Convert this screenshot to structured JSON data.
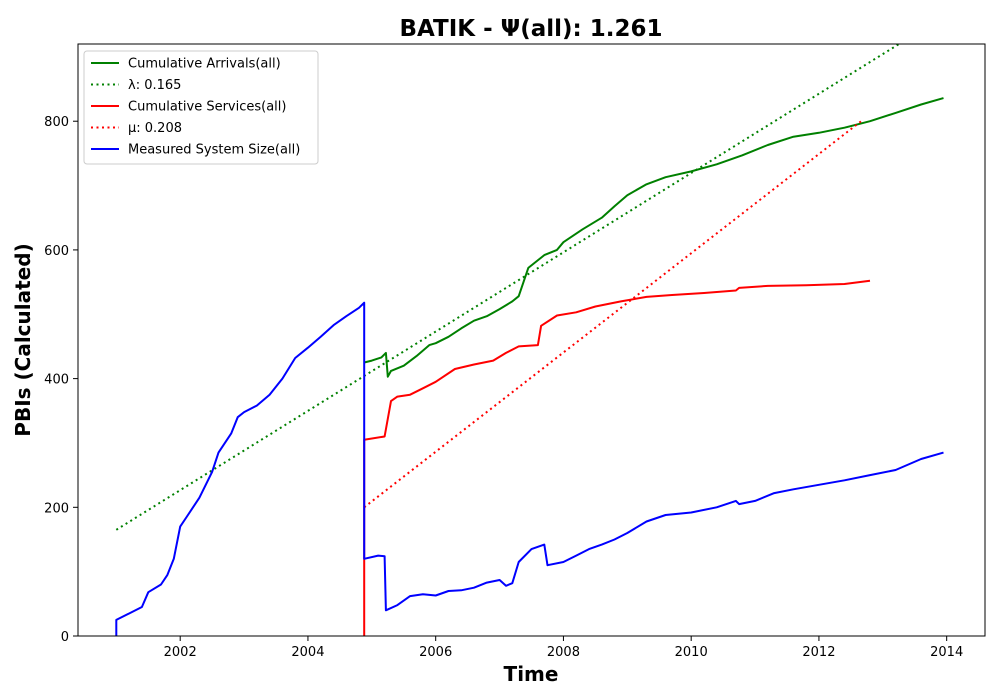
{
  "chart_data": {
    "type": "line",
    "title": "BATIK -  Ψ(all): 1.261",
    "xlabel": "Time",
    "ylabel": "PBIs (Calculated)",
    "xlim": [
      2000.4,
      2014.6
    ],
    "ylim": [
      0,
      920
    ],
    "x_ticks": [
      "2002",
      "2004",
      "2006",
      "2008",
      "2010",
      "2012",
      "2014"
    ],
    "y_ticks": [
      "0",
      "200",
      "400",
      "600",
      "800"
    ],
    "legend_position": "top-left",
    "series": [
      {
        "name": "Cumulative Arrivals(all)",
        "color": "#008000",
        "style": "solid",
        "points": [
          [
            2004.88,
            425
          ],
          [
            2005.0,
            428
          ],
          [
            2005.15,
            433
          ],
          [
            2005.22,
            440
          ],
          [
            2005.25,
            403
          ],
          [
            2005.3,
            412
          ],
          [
            2005.5,
            420
          ],
          [
            2005.7,
            435
          ],
          [
            2005.9,
            452
          ],
          [
            2006.0,
            455
          ],
          [
            2006.2,
            465
          ],
          [
            2006.4,
            478
          ],
          [
            2006.6,
            490
          ],
          [
            2006.8,
            497
          ],
          [
            2007.0,
            508
          ],
          [
            2007.2,
            520
          ],
          [
            2007.3,
            528
          ],
          [
            2007.45,
            572
          ],
          [
            2007.7,
            592
          ],
          [
            2007.9,
            600
          ],
          [
            2008.0,
            612
          ],
          [
            2008.3,
            632
          ],
          [
            2008.6,
            650
          ],
          [
            2008.8,
            668
          ],
          [
            2009.0,
            685
          ],
          [
            2009.3,
            702
          ],
          [
            2009.6,
            713
          ],
          [
            2010.0,
            722
          ],
          [
            2010.4,
            733
          ],
          [
            2010.8,
            747
          ],
          [
            2011.2,
            763
          ],
          [
            2011.6,
            776
          ],
          [
            2012.0,
            782
          ],
          [
            2012.4,
            790
          ],
          [
            2012.8,
            800
          ],
          [
            2013.2,
            813
          ],
          [
            2013.6,
            826
          ],
          [
            2013.95,
            836
          ]
        ]
      },
      {
        "name": "λ: 0.165",
        "color": "#008000",
        "style": "dotted",
        "points": [
          [
            2001.0,
            165
          ],
          [
            2013.5,
            935
          ]
        ]
      },
      {
        "name": "Cumulative Services(all)",
        "color": "#ff0000",
        "style": "solid",
        "points": [
          [
            2004.88,
            0
          ],
          [
            2004.88,
            305
          ],
          [
            2005.2,
            310
          ],
          [
            2005.3,
            365
          ],
          [
            2005.4,
            372
          ],
          [
            2005.6,
            375
          ],
          [
            2005.8,
            385
          ],
          [
            2006.0,
            395
          ],
          [
            2006.3,
            415
          ],
          [
            2006.6,
            422
          ],
          [
            2006.9,
            428
          ],
          [
            2007.1,
            440
          ],
          [
            2007.3,
            450
          ],
          [
            2007.6,
            452
          ],
          [
            2007.65,
            482
          ],
          [
            2007.9,
            498
          ],
          [
            2008.2,
            503
          ],
          [
            2008.5,
            512
          ],
          [
            2008.9,
            520
          ],
          [
            2009.3,
            527
          ],
          [
            2009.7,
            530
          ],
          [
            2010.2,
            533
          ],
          [
            2010.7,
            537
          ],
          [
            2010.75,
            541
          ],
          [
            2011.2,
            544
          ],
          [
            2011.8,
            545
          ],
          [
            2012.4,
            547
          ],
          [
            2012.8,
            552
          ]
        ]
      },
      {
        "name": "μ: 0.208",
        "color": "#ff0000",
        "style": "dotted",
        "points": [
          [
            2004.88,
            200
          ],
          [
            2012.7,
            803
          ]
        ]
      },
      {
        "name": "Measured System Size(all)",
        "color": "#0000ff",
        "style": "solid",
        "points": [
          [
            2001.0,
            0
          ],
          [
            2001.0,
            25
          ],
          [
            2001.2,
            35
          ],
          [
            2001.4,
            45
          ],
          [
            2001.5,
            68
          ],
          [
            2001.7,
            80
          ],
          [
            2001.8,
            95
          ],
          [
            2001.9,
            120
          ],
          [
            2002.0,
            170
          ],
          [
            2002.1,
            185
          ],
          [
            2002.3,
            215
          ],
          [
            2002.5,
            255
          ],
          [
            2002.6,
            285
          ],
          [
            2002.8,
            315
          ],
          [
            2002.9,
            340
          ],
          [
            2003.0,
            348
          ],
          [
            2003.2,
            358
          ],
          [
            2003.4,
            375
          ],
          [
            2003.6,
            400
          ],
          [
            2003.8,
            432
          ],
          [
            2004.0,
            448
          ],
          [
            2004.2,
            465
          ],
          [
            2004.4,
            483
          ],
          [
            2004.6,
            497
          ],
          [
            2004.8,
            510
          ],
          [
            2004.88,
            518
          ],
          [
            2004.88,
            120
          ],
          [
            2005.1,
            125
          ],
          [
            2005.2,
            124
          ],
          [
            2005.22,
            40
          ],
          [
            2005.4,
            48
          ],
          [
            2005.6,
            62
          ],
          [
            2005.8,
            65
          ],
          [
            2006.0,
            63
          ],
          [
            2006.2,
            70
          ],
          [
            2006.4,
            71
          ],
          [
            2006.6,
            75
          ],
          [
            2006.8,
            83
          ],
          [
            2007.0,
            87
          ],
          [
            2007.1,
            78
          ],
          [
            2007.2,
            82
          ],
          [
            2007.3,
            115
          ],
          [
            2007.5,
            135
          ],
          [
            2007.7,
            142
          ],
          [
            2007.75,
            110
          ],
          [
            2008.0,
            115
          ],
          [
            2008.2,
            125
          ],
          [
            2008.4,
            135
          ],
          [
            2008.6,
            142
          ],
          [
            2008.8,
            150
          ],
          [
            2009.0,
            160
          ],
          [
            2009.3,
            178
          ],
          [
            2009.6,
            188
          ],
          [
            2010.0,
            192
          ],
          [
            2010.4,
            200
          ],
          [
            2010.7,
            210
          ],
          [
            2010.75,
            205
          ],
          [
            2011.0,
            210
          ],
          [
            2011.3,
            222
          ],
          [
            2011.6,
            228
          ],
          [
            2012.0,
            235
          ],
          [
            2012.4,
            242
          ],
          [
            2012.8,
            250
          ],
          [
            2013.2,
            258
          ],
          [
            2013.6,
            275
          ],
          [
            2013.95,
            285
          ]
        ]
      }
    ]
  }
}
